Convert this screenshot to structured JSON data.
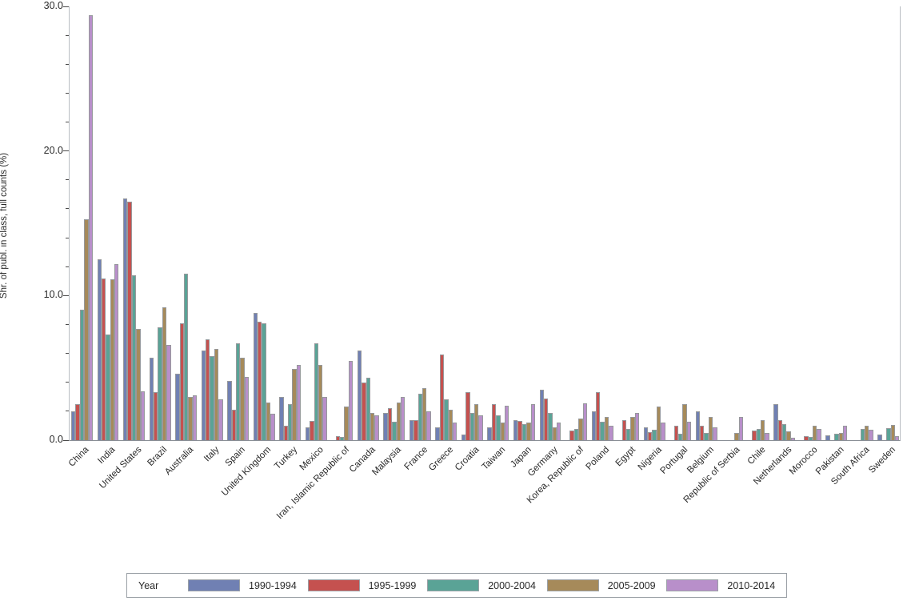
{
  "chart_data": {
    "type": "bar",
    "title": "",
    "xlabel": "",
    "ylabel": "Shr. of publ. in class, full counts (%)",
    "ylim": [
      0,
      30
    ],
    "y_major_ticks": [
      0,
      10,
      20,
      30
    ],
    "y_major_tick_labels": [
      "0.0",
      "10.0",
      "20.0",
      "30.0"
    ],
    "y_minor_tick_step": 2,
    "grid": false,
    "legend_position": "bottom",
    "legend_title": "Year",
    "bar_outline_color": "#97999c",
    "categories": [
      "China",
      "India",
      "United States",
      "Brazil",
      "Australia",
      "Italy",
      "Spain",
      "United Kingdom",
      "Turkey",
      "Mexico",
      "Iran, Islamic Republic of",
      "Canada",
      "Malaysia",
      "France",
      "Greece",
      "Croatia",
      "Taiwan",
      "Japan",
      "Germany",
      "Korea, Republic of",
      "Poland",
      "Egypt",
      "Nigeria",
      "Portugal",
      "Belgium",
      "Republic of Serbia",
      "Chile",
      "Netherlands",
      "Morocco",
      "Pakistan",
      "South Africa",
      "Sweden"
    ],
    "series": [
      {
        "name": "1990-1994",
        "color": "#7080b3",
        "values": [
          2.0,
          12.5,
          16.7,
          5.7,
          4.6,
          6.2,
          4.1,
          8.8,
          3.0,
          0.9,
          0,
          6.2,
          1.9,
          1.4,
          0.9,
          0.4,
          0.9,
          1.4,
          3.5,
          0,
          2.0,
          0,
          0.9,
          0,
          2.0,
          0,
          0,
          2.5,
          0,
          0.35,
          0,
          0.4
        ]
      },
      {
        "name": "1995-1999",
        "color": "#c5514f",
        "values": [
          2.5,
          11.2,
          16.5,
          3.3,
          8.1,
          7.0,
          2.1,
          8.2,
          1.0,
          1.35,
          0.3,
          4.0,
          2.2,
          1.4,
          5.9,
          3.3,
          2.5,
          1.35,
          2.9,
          0.65,
          3.3,
          1.4,
          0.55,
          1.0,
          1.0,
          0,
          0.65,
          1.4,
          0.3,
          0,
          0,
          0
        ]
      },
      {
        "name": "2000-2004",
        "color": "#5aa396",
        "values": [
          9.0,
          7.3,
          11.4,
          7.8,
          11.5,
          5.8,
          6.7,
          8.1,
          2.5,
          6.7,
          0.2,
          4.3,
          1.3,
          3.2,
          2.8,
          1.9,
          1.7,
          1.1,
          1.9,
          0.75,
          1.3,
          0.75,
          0.7,
          0.45,
          0.5,
          0,
          0.8,
          1.1,
          0.2,
          0.45,
          0.8,
          0.85
        ]
      },
      {
        "name": "2005-2009",
        "color": "#a68a5a",
        "values": [
          15.3,
          11.1,
          7.7,
          9.2,
          3.0,
          6.3,
          5.7,
          2.6,
          4.9,
          5.2,
          2.3,
          1.9,
          2.6,
          3.6,
          2.1,
          2.5,
          1.2,
          1.2,
          0.9,
          1.5,
          1.6,
          1.6,
          2.3,
          2.5,
          1.6,
          0.5,
          1.4,
          0.6,
          1.0,
          0.5,
          1.0,
          1.05
        ]
      },
      {
        "name": "2010-2014",
        "color": "#b88fca",
        "values": [
          29.4,
          12.2,
          3.4,
          6.6,
          3.1,
          2.8,
          4.4,
          1.8,
          5.2,
          3.0,
          5.5,
          1.7,
          3.0,
          2.0,
          1.2,
          1.7,
          2.4,
          2.5,
          1.2,
          2.55,
          1.0,
          1.9,
          1.2,
          1.3,
          0.9,
          1.6,
          0.5,
          0.15,
          0.75,
          1.0,
          0.7,
          0.3
        ]
      }
    ]
  }
}
